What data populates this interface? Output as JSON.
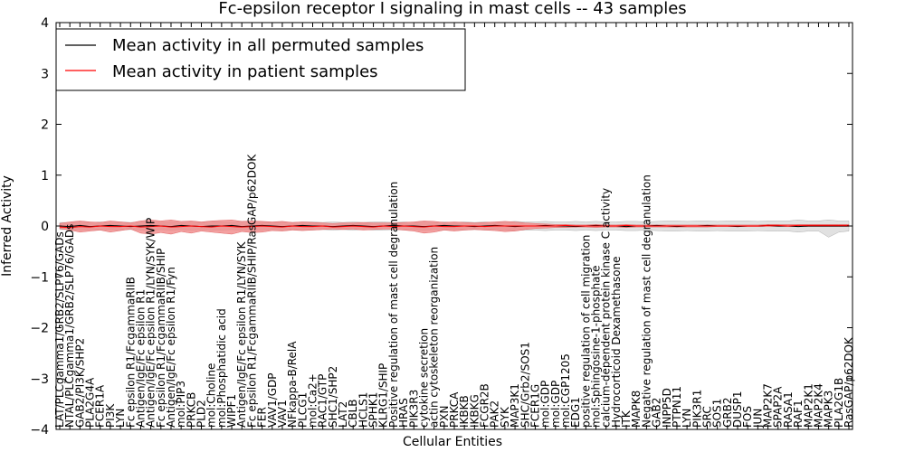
{
  "chart_data": {
    "type": "line",
    "title": "Fc-epsilon receptor I signaling in mast cells -- 43 samples",
    "xlabel": "Cellular Entities",
    "ylabel": "Inferred Activity",
    "ylim": [
      -4,
      4
    ],
    "yticks": [
      -4,
      -3,
      -2,
      -1,
      0,
      1,
      2,
      3,
      4
    ],
    "ytick_labels": [
      "−4",
      "−3",
      "−2",
      "−1",
      "0",
      "1",
      "2",
      "3",
      "4"
    ],
    "legend_position": "top-left",
    "categories": [
      "LAT/PLCgamma1/GRB2/SLP76/GADs",
      "NTAL/PLCgamma1/GRB2/SLP76/GADs",
      "GAB2/PI3K/SHP2",
      "PLA2G4A",
      "FCER1A",
      "PI3K",
      "LYN",
      "Fc epsilon R1/FcgammaRIIB",
      "Antigen/IgE/Fc epsilon R1",
      "Antigen/IgE/Fc epsilon R1/LYN/SYK/WIP",
      "Fc epsilon R1/FcgammaRIIB/SHIP",
      "Antigen/IgE/Fc epsilon R1/Fyn",
      "mol:PIP3",
      "PRKCB",
      "PLD2",
      "mol:Choline",
      "mol:Phosphatidic acid",
      "WIPF1",
      "Antigen/IgE/Fc epsilon R1/LYN/SYK",
      "Fc epsilon R1/FcgammaRIIB/SHIP/RasGAP/p62DOK",
      "FER",
      "VAV1/GDP",
      "VAV1",
      "NFkappa-B/RelA",
      "PLCG1",
      "mol:Ca2+",
      "RAC1/GTP",
      "SHC1/SHP2",
      "LAT2",
      "CBLB",
      "HCLS1",
      "SPHK1",
      "KLRG1/SHIP",
      "Positive regulation of mast cell degranulation",
      "HRAS",
      "PIK3R3",
      "cytokine secretion",
      "actin cytoskeleton reorganization",
      "PXN",
      "PRKCA",
      "IKBKB",
      "IKBKG",
      "FCGR2B",
      "PAK2",
      "SYK",
      "MAP3K1",
      "SHC/Grb2/SOS1",
      "FCER1G",
      "mol:GDP",
      "mol:GDP",
      "mol:CGP1205",
      "EDG1",
      "positive regulation of cell migration",
      "mol:Sphingosine-1-phosphate",
      "calcium-dependent protein kinase C activity",
      "Hydrocorticoid Dexamethasone",
      "ITK",
      "MAPK8",
      "Negative regulation of mast cell degranulation",
      "GAB2",
      "INPP5D",
      "PTPN11",
      "LYN",
      "PIK3R1",
      "SRC",
      "SOS1",
      "GRB2",
      "DUSP1",
      "FOS",
      "JUN",
      "MAP2K7",
      "SPAP2A",
      "RASA1",
      "RAF1",
      "MAP2K1",
      "MAP2K4",
      "MAPK3",
      "PLA2G1B",
      "RasGAP/p62DOK"
    ],
    "series": [
      {
        "name": "Mean activity in all permuted samples",
        "color": "#000000",
        "values": [
          0.0,
          -0.01,
          0.01,
          -0.01,
          0.0,
          0.01,
          0.0,
          -0.01,
          0.0,
          0.01,
          0.0,
          -0.01,
          0.01,
          0.0,
          -0.01,
          0.0,
          0.0,
          0.01,
          -0.01,
          0.0,
          0.01,
          0.0,
          -0.01,
          0.0,
          0.01,
          0.0,
          0.0,
          -0.01,
          0.0,
          0.01,
          0.0,
          -0.01,
          0.0,
          0.01,
          0.0,
          0.0,
          -0.01,
          0.0,
          0.01,
          0.0,
          0.0,
          -0.01,
          0.0,
          0.01,
          0.0,
          -0.01,
          0.0,
          0.0,
          0.01,
          0.0,
          0.0,
          -0.01,
          0.0,
          0.01,
          0.0,
          0.0,
          -0.01,
          0.0,
          0.0,
          0.01,
          0.0,
          -0.01,
          0.0,
          0.0,
          0.01,
          0.0,
          0.0,
          -0.01,
          0.0,
          0.0,
          0.01,
          0.0,
          0.0,
          -0.01,
          0.0,
          0.0,
          0.0,
          0.0,
          0.0
        ],
        "band_min": [
          -0.07,
          -0.07,
          -0.08,
          -0.07,
          -0.08,
          -0.07,
          -0.08,
          -0.07,
          -0.08,
          -0.08,
          -0.07,
          -0.08,
          -0.07,
          -0.08,
          -0.07,
          -0.08,
          -0.08,
          -0.07,
          -0.08,
          -0.07,
          -0.08,
          -0.07,
          -0.08,
          -0.07,
          -0.08,
          -0.08,
          -0.07,
          -0.08,
          -0.07,
          -0.08,
          -0.07,
          -0.08,
          -0.08,
          -0.07,
          -0.08,
          -0.07,
          -0.08,
          -0.07,
          -0.08,
          -0.07,
          -0.08,
          -0.07,
          -0.08,
          -0.07,
          -0.08,
          -0.09,
          -0.08,
          -0.08,
          -0.09,
          -0.08,
          -0.08,
          -0.09,
          -0.08,
          -0.09,
          -0.08,
          -0.08,
          -0.09,
          -0.09,
          -0.08,
          -0.09,
          -0.1,
          -0.1,
          -0.09,
          -0.1,
          -0.1,
          -0.09,
          -0.1,
          -0.1,
          -0.1,
          -0.09,
          -0.1,
          -0.1,
          -0.1,
          -0.12,
          -0.1,
          -0.1,
          -0.22,
          -0.12,
          -0.1
        ],
        "band_max": [
          0.07,
          0.07,
          0.08,
          0.07,
          0.08,
          0.07,
          0.08,
          0.07,
          0.08,
          0.08,
          0.07,
          0.08,
          0.07,
          0.08,
          0.07,
          0.08,
          0.08,
          0.07,
          0.08,
          0.07,
          0.08,
          0.07,
          0.08,
          0.07,
          0.08,
          0.08,
          0.07,
          0.08,
          0.07,
          0.08,
          0.07,
          0.08,
          0.08,
          0.07,
          0.08,
          0.07,
          0.08,
          0.07,
          0.08,
          0.07,
          0.08,
          0.07,
          0.08,
          0.07,
          0.08,
          0.09,
          0.08,
          0.08,
          0.09,
          0.08,
          0.08,
          0.09,
          0.08,
          0.09,
          0.08,
          0.08,
          0.09,
          0.09,
          0.08,
          0.09,
          0.1,
          0.1,
          0.09,
          0.1,
          0.1,
          0.09,
          0.1,
          0.1,
          0.1,
          0.09,
          0.1,
          0.1,
          0.1,
          0.12,
          0.1,
          0.1,
          0.12,
          0.1,
          0.1
        ]
      },
      {
        "name": "Mean activity in patient samples",
        "color": "#ff0000",
        "band_color": "#f08080",
        "values": [
          -0.02,
          -0.03,
          -0.01,
          -0.02,
          0.0,
          -0.01,
          -0.01,
          0.0,
          -0.02,
          -0.01,
          0.0,
          -0.02,
          -0.01,
          0.0,
          -0.01,
          -0.02,
          0.0,
          -0.01,
          -0.02,
          -0.01,
          0.0,
          -0.01,
          -0.02,
          0.0,
          -0.01,
          -0.01,
          0.0,
          -0.02,
          -0.01,
          0.0,
          -0.01,
          -0.02,
          0.0,
          -0.01,
          0.0,
          -0.01,
          -0.02,
          0.0,
          -0.01,
          -0.01,
          0.0,
          0.0,
          -0.01,
          0.0,
          0.0,
          0.0,
          0.0,
          0.0,
          0.0,
          0.0,
          0.01,
          0.0,
          0.0,
          0.0,
          0.0,
          0.0,
          0.01,
          0.0,
          0.0,
          0.0,
          0.0,
          0.0,
          0.0,
          0.0,
          0.0,
          0.0,
          0.0,
          0.0,
          0.0,
          0.0,
          0.01,
          0.01,
          0.0,
          0.01,
          0.01,
          0.01,
          0.01,
          0.01,
          0.01
        ],
        "band_min": [
          -0.05,
          -0.08,
          -0.12,
          -0.1,
          -0.08,
          -0.12,
          -0.09,
          -0.06,
          -0.14,
          -0.16,
          -0.13,
          -0.16,
          -0.11,
          -0.14,
          -0.1,
          -0.12,
          -0.14,
          -0.16,
          -0.11,
          -0.13,
          -0.12,
          -0.09,
          -0.1,
          -0.08,
          -0.09,
          -0.08,
          -0.07,
          -0.06,
          -0.07,
          -0.06,
          -0.08,
          -0.07,
          -0.06,
          -0.06,
          -0.08,
          -0.1,
          -0.14,
          -0.12,
          -0.08,
          -0.1,
          -0.08,
          -0.07,
          -0.08,
          -0.09,
          -0.11,
          -0.1,
          -0.07,
          -0.05,
          -0.04,
          -0.03,
          -0.03,
          -0.02,
          -0.02,
          -0.03,
          -0.02,
          -0.02,
          -0.03,
          -0.02,
          -0.02,
          -0.02,
          -0.02,
          -0.02,
          -0.02,
          -0.02,
          -0.02,
          -0.01,
          -0.01,
          -0.01,
          -0.01,
          -0.01,
          -0.01,
          -0.01,
          -0.01,
          -0.01,
          -0.01,
          -0.01,
          -0.01,
          -0.01,
          -0.01
        ],
        "band_max": [
          0.05,
          0.08,
          0.1,
          0.08,
          0.07,
          0.1,
          0.08,
          0.06,
          0.1,
          0.12,
          0.1,
          0.12,
          0.09,
          0.1,
          0.08,
          0.1,
          0.11,
          0.12,
          0.09,
          0.1,
          0.09,
          0.08,
          0.09,
          0.07,
          0.08,
          0.07,
          0.06,
          0.05,
          0.06,
          0.06,
          0.07,
          0.06,
          0.06,
          0.06,
          0.07,
          0.08,
          0.1,
          0.09,
          0.07,
          0.08,
          0.07,
          0.06,
          0.07,
          0.08,
          0.09,
          0.08,
          0.06,
          0.05,
          0.04,
          0.03,
          0.03,
          0.02,
          0.02,
          0.03,
          0.02,
          0.02,
          0.03,
          0.02,
          0.02,
          0.02,
          0.02,
          0.02,
          0.02,
          0.02,
          0.02,
          0.02,
          0.02,
          0.02,
          0.02,
          0.02,
          0.03,
          0.03,
          0.03,
          0.03,
          0.03,
          0.03,
          0.03,
          0.03,
          0.03
        ]
      }
    ]
  }
}
